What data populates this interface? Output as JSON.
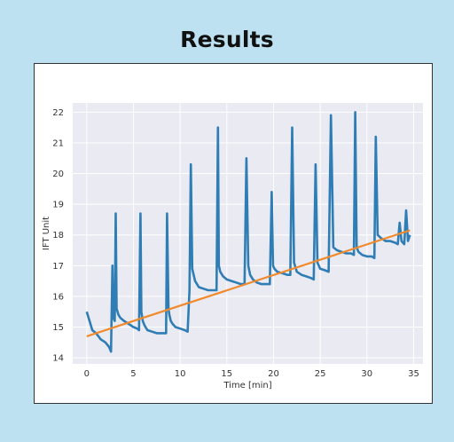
{
  "page": {
    "title": "Results"
  },
  "chart_data": {
    "type": "line",
    "title": "",
    "xlabel": "Time [min]",
    "ylabel": "IFT Unit",
    "xlim": [
      -1.5,
      36.0
    ],
    "ylim": [
      13.8,
      22.3
    ],
    "xticks": [
      0,
      5,
      10,
      15,
      20,
      25,
      30,
      35
    ],
    "yticks": [
      14,
      15,
      16,
      17,
      18,
      19,
      20,
      21,
      22
    ],
    "grid": true,
    "legend": "none",
    "colors": {
      "plot_background": "#eaeaf2",
      "grid": "#ffffff",
      "measured": "#2f7db5",
      "trend": "#f08a2c"
    },
    "series": [
      {
        "style": "measured",
        "x": [
          0,
          0.3,
          0.6,
          1.0,
          1.5,
          2.0,
          2.4,
          2.6,
          2.75,
          2.85,
          3.0,
          3.1,
          3.2,
          3.4,
          3.6,
          4.0,
          4.5,
          5.0,
          5.4,
          5.6,
          5.75,
          5.85,
          6.0,
          6.2,
          6.5,
          7.0,
          7.5,
          8.0,
          8.3,
          8.5,
          8.6,
          8.75,
          8.85,
          9.0,
          9.2,
          9.5,
          10.0,
          10.5,
          10.8,
          11.0,
          11.15,
          11.3,
          11.6,
          12.0,
          12.5,
          13.0,
          13.5,
          13.9,
          14.05,
          14.15,
          14.3,
          14.6,
          15.0,
          15.5,
          16.0,
          16.5,
          16.9,
          17.1,
          17.3,
          17.5,
          17.8,
          18.2,
          18.7,
          19.2,
          19.6,
          19.8,
          19.95,
          20.1,
          20.4,
          21.0,
          21.5,
          21.8,
          22.0,
          22.2,
          22.5,
          23.0,
          23.5,
          24.0,
          24.3,
          24.5,
          24.7,
          25.0,
          25.5,
          25.9,
          26.15,
          26.4,
          26.8,
          27.3,
          27.8,
          28.3,
          28.6,
          28.75,
          28.9,
          29.1,
          29.5,
          30.0,
          30.5,
          30.8,
          30.95,
          31.15,
          31.5,
          32.0,
          32.5,
          33.0,
          33.3,
          33.5,
          33.7,
          34.0,
          34.2,
          34.4,
          34.6
        ],
        "y": [
          15.5,
          15.2,
          14.9,
          14.8,
          14.6,
          14.5,
          14.35,
          14.2,
          17.0,
          15.3,
          15.2,
          18.7,
          15.6,
          15.4,
          15.3,
          15.2,
          15.1,
          15.0,
          14.95,
          14.9,
          18.7,
          15.5,
          15.2,
          15.05,
          14.9,
          14.85,
          14.8,
          14.8,
          14.8,
          14.8,
          18.7,
          15.6,
          15.4,
          15.2,
          15.1,
          15.0,
          14.95,
          14.9,
          14.85,
          16.2,
          20.3,
          16.9,
          16.5,
          16.3,
          16.25,
          16.2,
          16.2,
          16.2,
          21.5,
          17.0,
          16.8,
          16.65,
          16.55,
          16.5,
          16.45,
          16.4,
          16.4,
          20.5,
          17.0,
          16.7,
          16.55,
          16.45,
          16.4,
          16.4,
          16.4,
          19.4,
          17.0,
          16.9,
          16.8,
          16.75,
          16.7,
          16.7,
          21.5,
          17.1,
          16.8,
          16.7,
          16.65,
          16.6,
          16.55,
          20.3,
          17.1,
          16.9,
          16.85,
          16.8,
          21.9,
          17.6,
          17.5,
          17.45,
          17.4,
          17.4,
          17.35,
          22.0,
          17.6,
          17.45,
          17.35,
          17.3,
          17.3,
          17.25,
          21.2,
          18.0,
          17.9,
          17.8,
          17.8,
          17.75,
          17.7,
          18.4,
          17.8,
          17.7,
          18.8,
          17.8,
          18.0
        ]
      },
      {
        "style": "trend",
        "x": [
          0,
          34.6
        ],
        "y": [
          14.7,
          18.15
        ]
      }
    ]
  }
}
